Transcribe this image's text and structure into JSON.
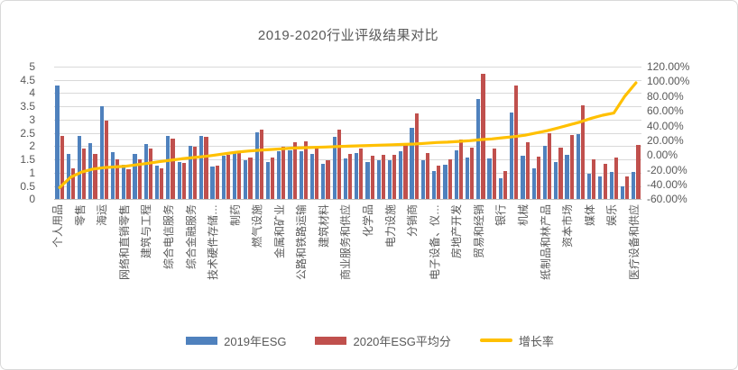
{
  "chart": {
    "title": "2019-2020行业评级结果对比",
    "legend": {
      "series1_label": "2019年ESG",
      "series2_label": "2020年ESG平均分",
      "line_label": "增长率"
    },
    "left_axis_ticks": [
      "5",
      "4.5",
      "4",
      "3.5",
      "3",
      "2.5",
      "2",
      "1.5",
      "1",
      "0.5",
      "0"
    ],
    "right_axis_ticks": [
      "120.00%",
      "100.00%",
      "80.00%",
      "60.00%",
      "40.00%",
      "20.00%",
      "0.00%",
      "-20.00%",
      "-40.00%",
      "-60.00%"
    ]
  },
  "colors": {
    "bar2019": "#4f81bd",
    "bar2020": "#c0504d",
    "growth_line": "#ffc000",
    "gridline": "#d9d9d9",
    "axis_line": "#bfbfbf",
    "text": "#595959"
  },
  "chart_data": {
    "type": "bar",
    "subtype": "grouped-bars-with-secondary-axis-line",
    "title": "2019-2020行业评级结果对比",
    "n_categories": 53,
    "x_tick_interval": 2,
    "x_labels_shown": [
      "个人用品",
      "零售",
      "海运",
      "网络和直销零售",
      "建筑与工程",
      "综合电信服务",
      "综合金融服务",
      "技术硬件存储…",
      "制药",
      "燃气设施",
      "金属和矿业",
      "公路和铁路运输",
      "建筑材料",
      "商业服务和供应",
      "化学品",
      "电力设施",
      "分销商",
      "电子设备、仪…",
      "房地产开发",
      "贸易和经销",
      "银行",
      "机械",
      "纸制品和林产品",
      "资本市场",
      "媒体",
      "娱乐",
      "医疗设备和供应"
    ],
    "series": [
      {
        "name": "2019年ESG",
        "axis": "left",
        "values": [
          4.3,
          1.7,
          2.38,
          2.1,
          3.5,
          1.77,
          1.31,
          1.7,
          2.08,
          1.28,
          2.38,
          1.42,
          2.01,
          2.4,
          1.25,
          1.65,
          1.76,
          1.46,
          2.53,
          1.42,
          1.8,
          1.84,
          1.82,
          1.7,
          1.34,
          2.36,
          1.53,
          1.76,
          1.4,
          1.46,
          1.46,
          1.82,
          2.7,
          1.48,
          1.05,
          1.3,
          1.85,
          1.57,
          3.77,
          1.53,
          0.8,
          3.26,
          1.63,
          1.16,
          2.0,
          1.4,
          1.67,
          2.44,
          0.98,
          0.87,
          1.04,
          0.5,
          1.04
        ]
      },
      {
        "name": "2020年ESG平均分",
        "axis": "left",
        "values": [
          2.4,
          1.15,
          1.92,
          1.7,
          2.95,
          1.5,
          1.12,
          1.5,
          1.93,
          1.16,
          2.27,
          1.38,
          1.98,
          2.37,
          1.28,
          1.68,
          1.79,
          1.57,
          2.64,
          1.56,
          1.97,
          2.16,
          2.2,
          1.9,
          1.48,
          2.64,
          1.7,
          1.91,
          1.65,
          1.67,
          1.68,
          2.1,
          3.23,
          1.73,
          1.28,
          1.5,
          2.25,
          1.95,
          4.72,
          1.9,
          1.08,
          4.28,
          2.14,
          1.61,
          2.5,
          1.96,
          2.42,
          3.55,
          1.49,
          1.35,
          1.57,
          0.87,
          2.05
        ]
      },
      {
        "name": "增长率",
        "axis": "right",
        "unit": "percent",
        "values": [
          -44,
          -30,
          -23,
          -19,
          -17,
          -16,
          -15,
          -13,
          -11,
          -9,
          -7,
          -5,
          -3.5,
          -2,
          0,
          2,
          4,
          5.5,
          6.5,
          7.5,
          8.5,
          9.5,
          10,
          10.5,
          11,
          11.5,
          12,
          12.5,
          13,
          13.5,
          14,
          14.5,
          15,
          16,
          17,
          17.5,
          18.5,
          19.5,
          21,
          22,
          23.5,
          25,
          27,
          30,
          33,
          37,
          41,
          45,
          50,
          54,
          57,
          80,
          98
        ]
      }
    ],
    "left_axis": {
      "min": 0,
      "max": 5,
      "step": 0.5
    },
    "right_axis": {
      "min": -60,
      "max": 120,
      "step": 20,
      "format": "0.00%"
    },
    "grid": true,
    "legend_position": "bottom"
  }
}
